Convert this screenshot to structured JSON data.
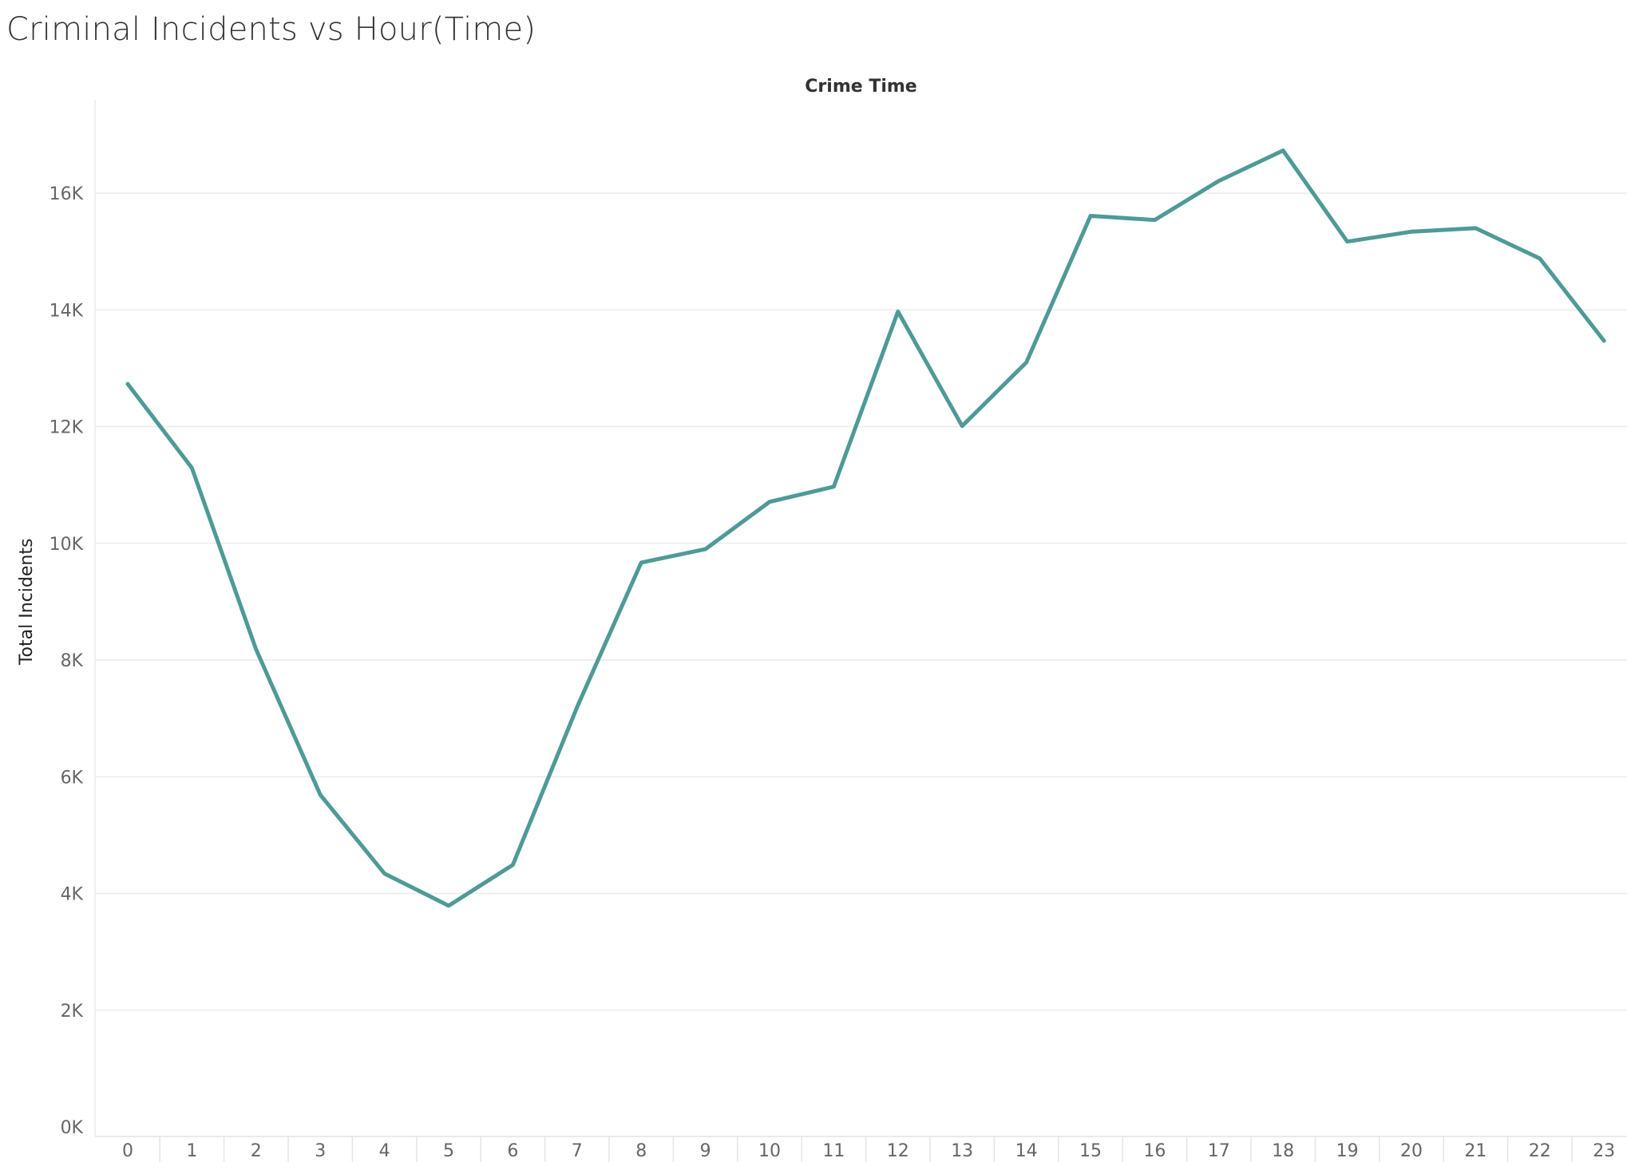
{
  "title": "Criminal Incidents vs Hour(Time)",
  "chart_data": {
    "type": "line",
    "title": "Criminal Incidents vs Hour(Time)",
    "column_header": "Crime Time",
    "xlabel": "",
    "ylabel": "Total Incidents",
    "x": [
      0,
      1,
      2,
      3,
      4,
      5,
      6,
      7,
      8,
      9,
      10,
      11,
      12,
      13,
      14,
      15,
      16,
      17,
      18,
      19,
      20,
      21,
      22,
      23
    ],
    "y_ticks": [
      "0K",
      "2K",
      "4K",
      "6K",
      "8K",
      "10K",
      "12K",
      "14K",
      "16K"
    ],
    "ylim": [
      0,
      17600
    ],
    "grid": true,
    "series": [
      {
        "values": [
          12730,
          11290,
          8180,
          5690,
          4340,
          3790,
          4490,
          7190,
          9670,
          9900,
          10710,
          10970,
          13970,
          12010,
          13100,
          15610,
          15540,
          16210,
          16730,
          15170,
          15340,
          15400,
          14880,
          13470
        ],
        "color": "#4e9a97"
      }
    ]
  }
}
